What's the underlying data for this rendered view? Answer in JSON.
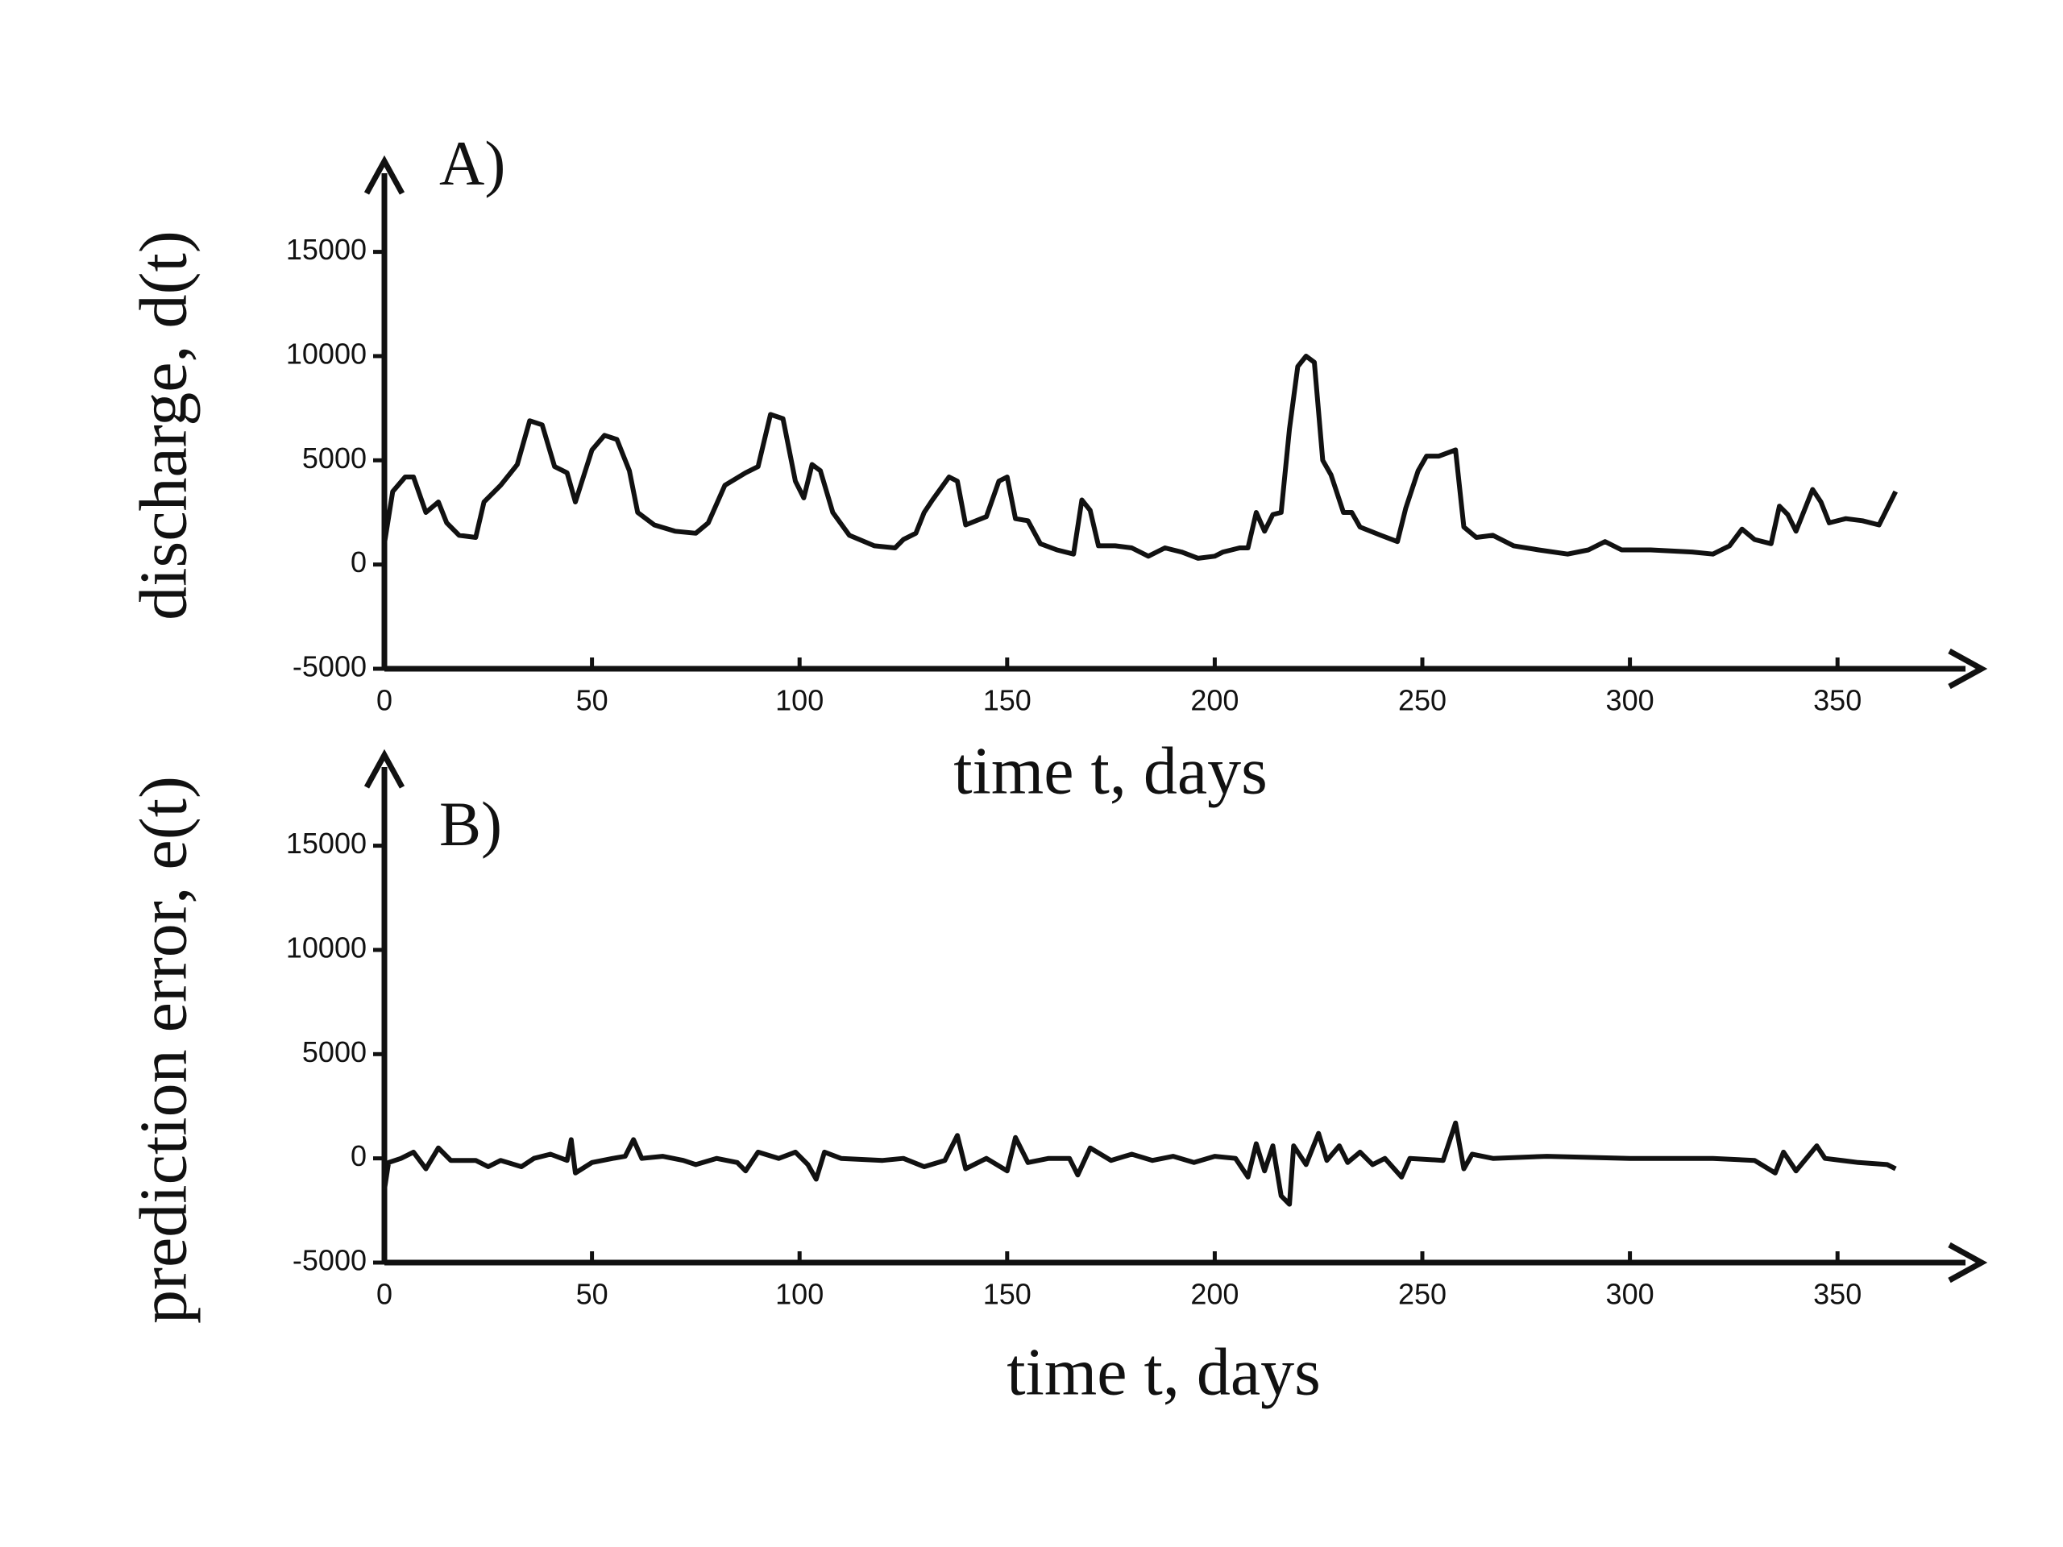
{
  "chart_data": [
    {
      "type": "line",
      "title": "A)",
      "x_label": "time t, days",
      "y_label": "discharge, d(t)",
      "xlim": [
        0,
        375
      ],
      "ylim": [
        -5000,
        18000
      ],
      "xticks": [
        0,
        50,
        100,
        150,
        200,
        250,
        300,
        350
      ],
      "yticks": [
        -5000,
        0,
        5000,
        10000,
        15000
      ],
      "x": [
        0,
        2,
        5,
        7,
        10,
        13,
        15,
        18,
        22,
        24,
        28,
        32,
        35,
        38,
        41,
        44,
        46,
        50,
        53,
        56,
        59,
        61,
        65,
        70,
        75,
        78,
        82,
        87,
        90,
        93,
        96,
        99,
        101,
        103,
        105,
        108,
        112,
        118,
        123,
        125,
        128,
        130,
        132,
        136,
        138,
        140,
        145,
        148,
        150,
        152,
        155,
        158,
        162,
        166,
        168,
        170,
        172,
        176,
        180,
        184,
        188,
        192,
        196,
        200,
        202,
        206,
        208,
        210,
        212,
        214,
        216,
        218,
        220,
        222,
        224,
        226,
        228,
        231,
        233,
        235,
        240,
        244,
        246,
        249,
        251,
        254,
        258,
        260,
        263,
        267,
        272,
        278,
        285,
        290,
        294,
        298,
        305,
        315,
        320,
        324,
        327,
        330,
        334,
        336,
        338,
        340,
        344,
        346,
        348,
        352,
        356,
        360,
        364
      ],
      "series": [
        {
          "color": "#111111",
          "values": [
            1000,
            3500,
            4200,
            4200,
            2500,
            3000,
            2000,
            1400,
            1300,
            3000,
            3800,
            4800,
            6900,
            6700,
            4700,
            4400,
            3000,
            5500,
            6200,
            6000,
            4500,
            2500,
            1900,
            1600,
            1500,
            2000,
            3800,
            4400,
            4700,
            7200,
            7000,
            4000,
            3200,
            4800,
            4500,
            2500,
            1400,
            900,
            800,
            1200,
            1500,
            2500,
            3100,
            4200,
            4000,
            1900,
            2300,
            4000,
            4200,
            2200,
            2100,
            1000,
            700,
            500,
            3100,
            2600,
            900,
            900,
            800,
            400,
            800,
            600,
            300,
            400,
            600,
            800,
            800,
            2500,
            1600,
            2400,
            2500,
            6500,
            9500,
            10000,
            9700,
            5000,
            4300,
            2500,
            2500,
            1800,
            1400,
            1100,
            2700,
            4500,
            5200,
            5200,
            5500,
            1800,
            1300,
            1400,
            900,
            700,
            500,
            700,
            1100,
            700,
            700,
            600,
            500,
            900,
            1700,
            1200,
            1000,
            2800,
            2400,
            1600,
            3600,
            3000,
            2000,
            2200,
            2100,
            1900,
            3500
          ]
        }
      ]
    },
    {
      "type": "line",
      "title": "B)",
      "x_label": "time t, days",
      "y_label": "prediction error, e(t)",
      "xlim": [
        0,
        375
      ],
      "ylim": [
        -5000,
        18000
      ],
      "xticks": [
        0,
        50,
        100,
        150,
        200,
        250,
        300,
        350
      ],
      "yticks": [
        -5000,
        0,
        5000,
        10000,
        15000
      ],
      "x": [
        0,
        1,
        4,
        7,
        10,
        13,
        16,
        22,
        25,
        28,
        33,
        36,
        40,
        44,
        45,
        46,
        50,
        55,
        58,
        60,
        62,
        67,
        72,
        75,
        80,
        85,
        87,
        90,
        95,
        99,
        102,
        104,
        106,
        110,
        120,
        125,
        130,
        135,
        138,
        140,
        145,
        150,
        152,
        155,
        160,
        165,
        167,
        170,
        175,
        180,
        185,
        190,
        195,
        200,
        205,
        208,
        210,
        212,
        214,
        216,
        218,
        219,
        222,
        225,
        227,
        230,
        232,
        235,
        238,
        241,
        245,
        247,
        255,
        258,
        260,
        262,
        267,
        280,
        300,
        320,
        330,
        335,
        337,
        340,
        345,
        347,
        355,
        362,
        364
      ],
      "series": [
        {
          "color": "#111111",
          "values": [
            -1500,
            -200,
            0,
            300,
            -500,
            500,
            -100,
            -100,
            -400,
            -100,
            -400,
            0,
            200,
            -100,
            900,
            -700,
            -200,
            0,
            100,
            900,
            0,
            100,
            -100,
            -300,
            0,
            -200,
            -600,
            300,
            0,
            300,
            -300,
            -1000,
            300,
            0,
            -100,
            0,
            -400,
            -100,
            1100,
            -500,
            0,
            -600,
            1000,
            -200,
            0,
            0,
            -800,
            500,
            -100,
            200,
            -100,
            100,
            -200,
            100,
            0,
            -900,
            700,
            -600,
            600,
            -1800,
            -2200,
            600,
            -300,
            1200,
            -100,
            600,
            -200,
            300,
            -300,
            0,
            -900,
            0,
            -100,
            1700,
            -500,
            200,
            0,
            100,
            0,
            0,
            -100,
            -700,
            300,
            -600,
            600,
            0,
            -200,
            -300,
            -500
          ]
        }
      ]
    }
  ]
}
